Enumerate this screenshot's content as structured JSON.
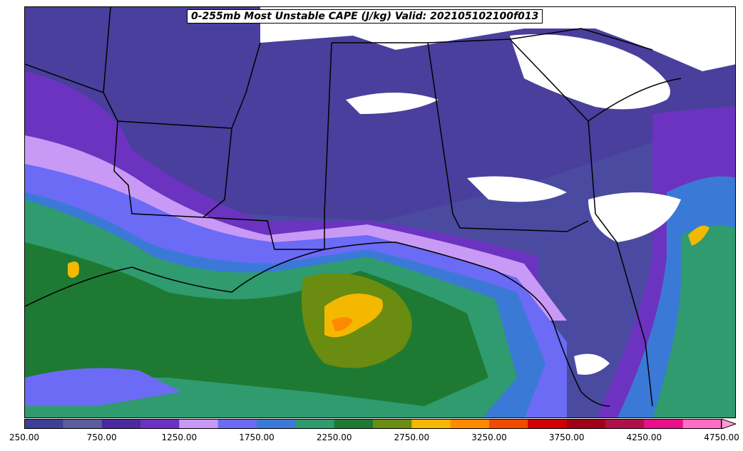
{
  "title": "0-255mb Most Unstable CAPE (J/kg) Valid: 202105102100f013",
  "colorbar": {
    "colors": [
      "#3f3f95",
      "#5c5c9e",
      "#4b2aa0",
      "#6a31c2",
      "#c89af5",
      "#6b6bf5",
      "#3a7ad6",
      "#2f9b6e",
      "#1e7a32",
      "#6a8c10",
      "#f4b800",
      "#ff8a00",
      "#f04a00",
      "#d00000",
      "#a00018",
      "#b0104a",
      "#e8108a",
      "#ff6ec4"
    ],
    "ticks": [
      "250.00",
      "750.00",
      "1250.00",
      "1750.00",
      "2250.00",
      "2750.00",
      "3250.00",
      "3750.00",
      "4250.00",
      "4750.00"
    ]
  }
}
